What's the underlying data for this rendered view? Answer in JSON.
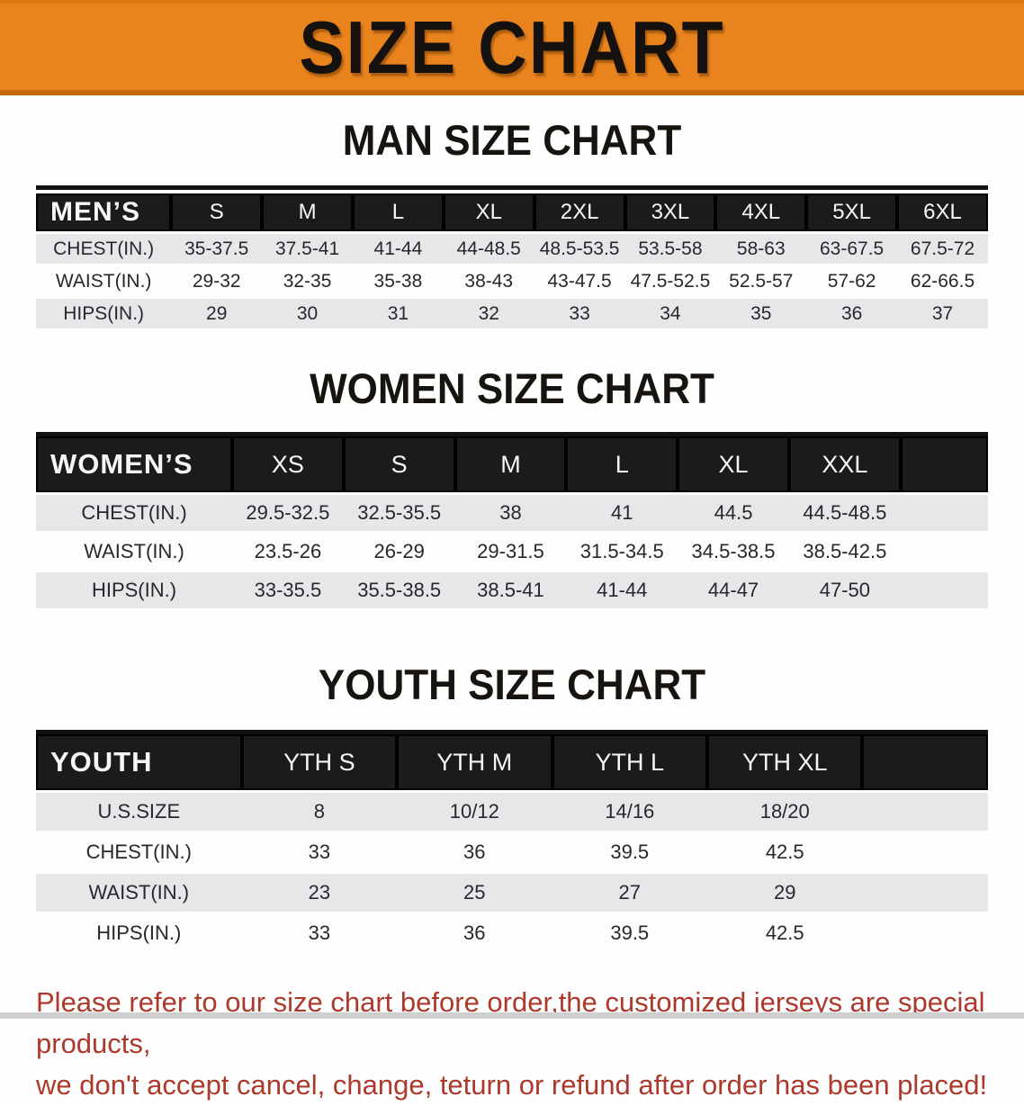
{
  "banner": {
    "title": "SIZE CHART"
  },
  "colors": {
    "banner_bg": "#E8831D",
    "banner_border": "#C46A0C",
    "header_bar": "#1B1B1B",
    "row_alt_gray": "#E5E7E9",
    "row_white": "#FDFDFE",
    "disclaimer_red": "#AC392B"
  },
  "sections": {
    "men": {
      "heading": "MAN SIZE CHART",
      "label": "MEN’S",
      "sizes": [
        "S",
        "M",
        "L",
        "XL",
        "2XL",
        "3XL",
        "4XL",
        "5XL",
        "6XL"
      ],
      "rows": [
        {
          "label": "CHEST(IN.)",
          "values": [
            "35-37.5",
            "37.5-41",
            "41-44",
            "44-48.5",
            "48.5-53.5",
            "53.5-58",
            "58-63",
            "63-67.5",
            "67.5-72"
          ]
        },
        {
          "label": "WAIST(IN.)",
          "values": [
            "29-32",
            "32-35",
            "35-38",
            "38-43",
            "43-47.5",
            "47.5-52.5",
            "52.5-57",
            "57-62",
            "62-66.5"
          ]
        },
        {
          "label": "HIPS(IN.)",
          "values": [
            "29",
            "30",
            "31",
            "32",
            "33",
            "34",
            "35",
            "36",
            "37"
          ]
        }
      ]
    },
    "women": {
      "heading": "WOMEN SIZE CHART",
      "label": "WOMEN’S",
      "sizes": [
        "XS",
        "S",
        "M",
        "L",
        "XL",
        "XXL"
      ],
      "rows": [
        {
          "label": "CHEST(IN.)",
          "values": [
            "29.5-32.5",
            "32.5-35.5",
            "38",
            "41",
            "44.5",
            "44.5-48.5"
          ]
        },
        {
          "label": "WAIST(IN.)",
          "values": [
            "23.5-26",
            "26-29",
            "29-31.5",
            "31.5-34.5",
            "34.5-38.5",
            "38.5-42.5"
          ]
        },
        {
          "label": "HIPS(IN.)",
          "values": [
            "33-35.5",
            "35.5-38.5",
            "38.5-41",
            "41-44",
            "44-47",
            "47-50"
          ]
        }
      ]
    },
    "youth": {
      "heading": "YOUTH SIZE CHART",
      "label": "YOUTH",
      "sizes": [
        "YTH S",
        "YTH M",
        "YTH L",
        "YTH XL"
      ],
      "rows": [
        {
          "label": "U.S.SIZE",
          "values": [
            "8",
            "10/12",
            "14/16",
            "18/20"
          ]
        },
        {
          "label": "CHEST(IN.)",
          "values": [
            "33",
            "36",
            "39.5",
            "42.5"
          ]
        },
        {
          "label": "WAIST(IN.)",
          "values": [
            "23",
            "25",
            "27",
            "29"
          ]
        },
        {
          "label": "HIPS(IN.)",
          "values": [
            "33",
            "36",
            "39.5",
            "42.5"
          ]
        }
      ]
    }
  },
  "disclaimer": {
    "line1": "Please refer to our size chart before order,the customized jerseys are special products,",
    "line2": "we don't accept cancel, change, teturn or refund after order has been placed!"
  }
}
